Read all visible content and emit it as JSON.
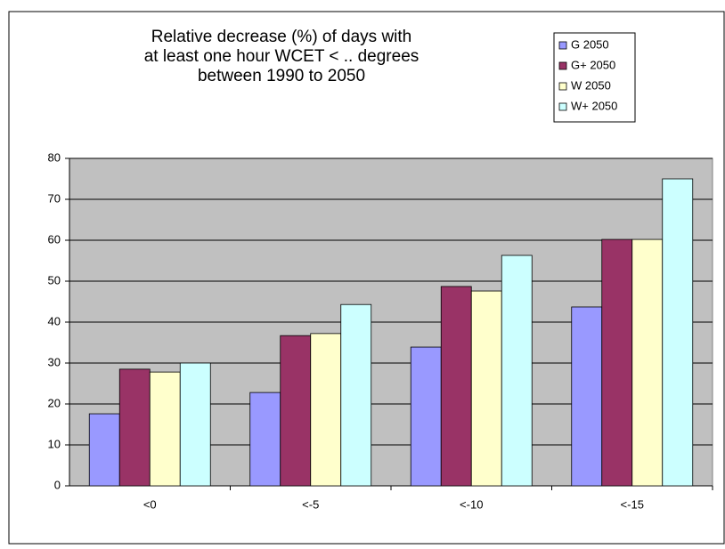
{
  "chart_data": {
    "type": "bar",
    "title": [
      "Relative decrease (%) of days with",
      "at least one hour WCET < .. degrees",
      "between 1990 to 2050"
    ],
    "categories": [
      "<0",
      "<-5",
      "<-10",
      "<-15"
    ],
    "series": [
      {
        "name": "G 2050",
        "color": "#9999ff",
        "values": [
          17.6,
          22.8,
          33.9,
          43.7
        ]
      },
      {
        "name": "G+ 2050",
        "color": "#993366",
        "values": [
          28.5,
          36.7,
          48.7,
          60.2
        ]
      },
      {
        "name": "W 2050",
        "color": "#ffffcc",
        "values": [
          27.8,
          37.2,
          47.6,
          60.2
        ]
      },
      {
        "name": "W+ 2050",
        "color": "#ccffff",
        "values": [
          30,
          44.3,
          56.3,
          75
        ]
      }
    ],
    "ylim": [
      0,
      80
    ],
    "yticks": [
      0,
      10,
      20,
      30,
      40,
      50,
      60,
      70,
      80
    ],
    "grid": true,
    "plot_background": "#c0c0c0",
    "legend": "top-right"
  }
}
